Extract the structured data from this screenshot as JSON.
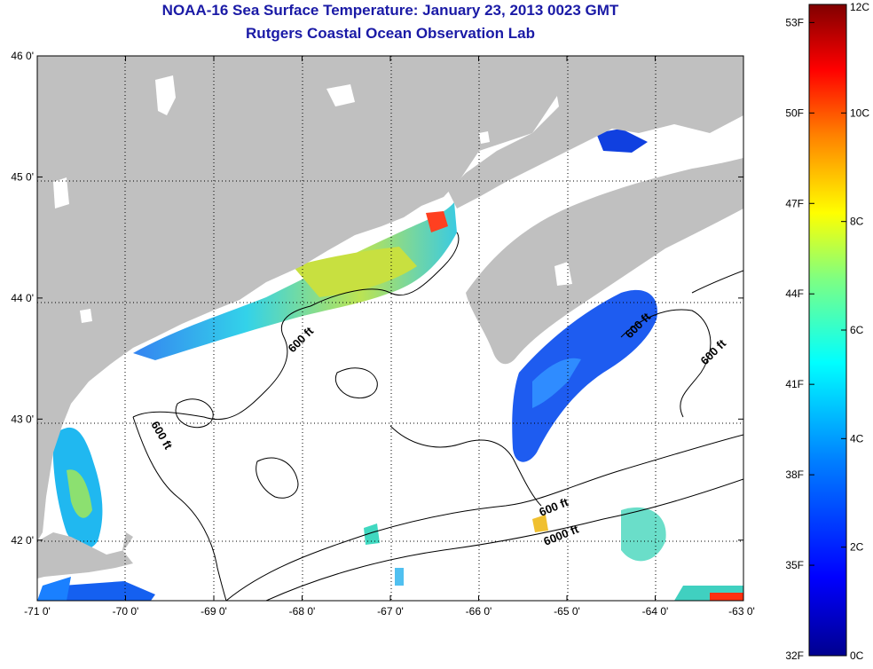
{
  "header": {
    "title": "NOAA-16 Sea Surface Temperature:  January 23, 2013 0023 GMT",
    "subtitle": "Rutgers Coastal Ocean Observation Lab"
  },
  "map": {
    "lon_range": [
      -71.0,
      -63.0
    ],
    "lat_range": [
      41.5,
      46.0
    ],
    "lon_ticks": [
      "-71 0'",
      "-70 0'",
      "-69 0'",
      "-68 0'",
      "-67 0'",
      "-66 0'",
      "-65 0'",
      "-64 0'",
      "-63 0'"
    ],
    "lat_ticks": [
      "46 0'",
      "45 0'",
      "44 0'",
      "43 0'",
      "42 0'"
    ],
    "contour_labels": [
      "600 ft",
      "600 ft",
      "600 ft",
      "600 ft",
      "600 ft",
      "6000 ft"
    ],
    "land_color": "#c0c0c0",
    "ocean_color": "#ffffff",
    "grid": "dotted"
  },
  "colorbar": {
    "min_c": 0,
    "max_c": 12,
    "f_labels": [
      "53F",
      "50F",
      "47F",
      "44F",
      "41F",
      "38F",
      "35F",
      "32F"
    ],
    "c_labels": [
      "12C",
      "10C",
      "8C",
      "6C",
      "4C",
      "2C",
      "0C"
    ],
    "colors": [
      "#00008f",
      "#0000ff",
      "#0080ff",
      "#00ffff",
      "#80ff80",
      "#ffff00",
      "#ff8000",
      "#ff0000",
      "#800000"
    ]
  }
}
